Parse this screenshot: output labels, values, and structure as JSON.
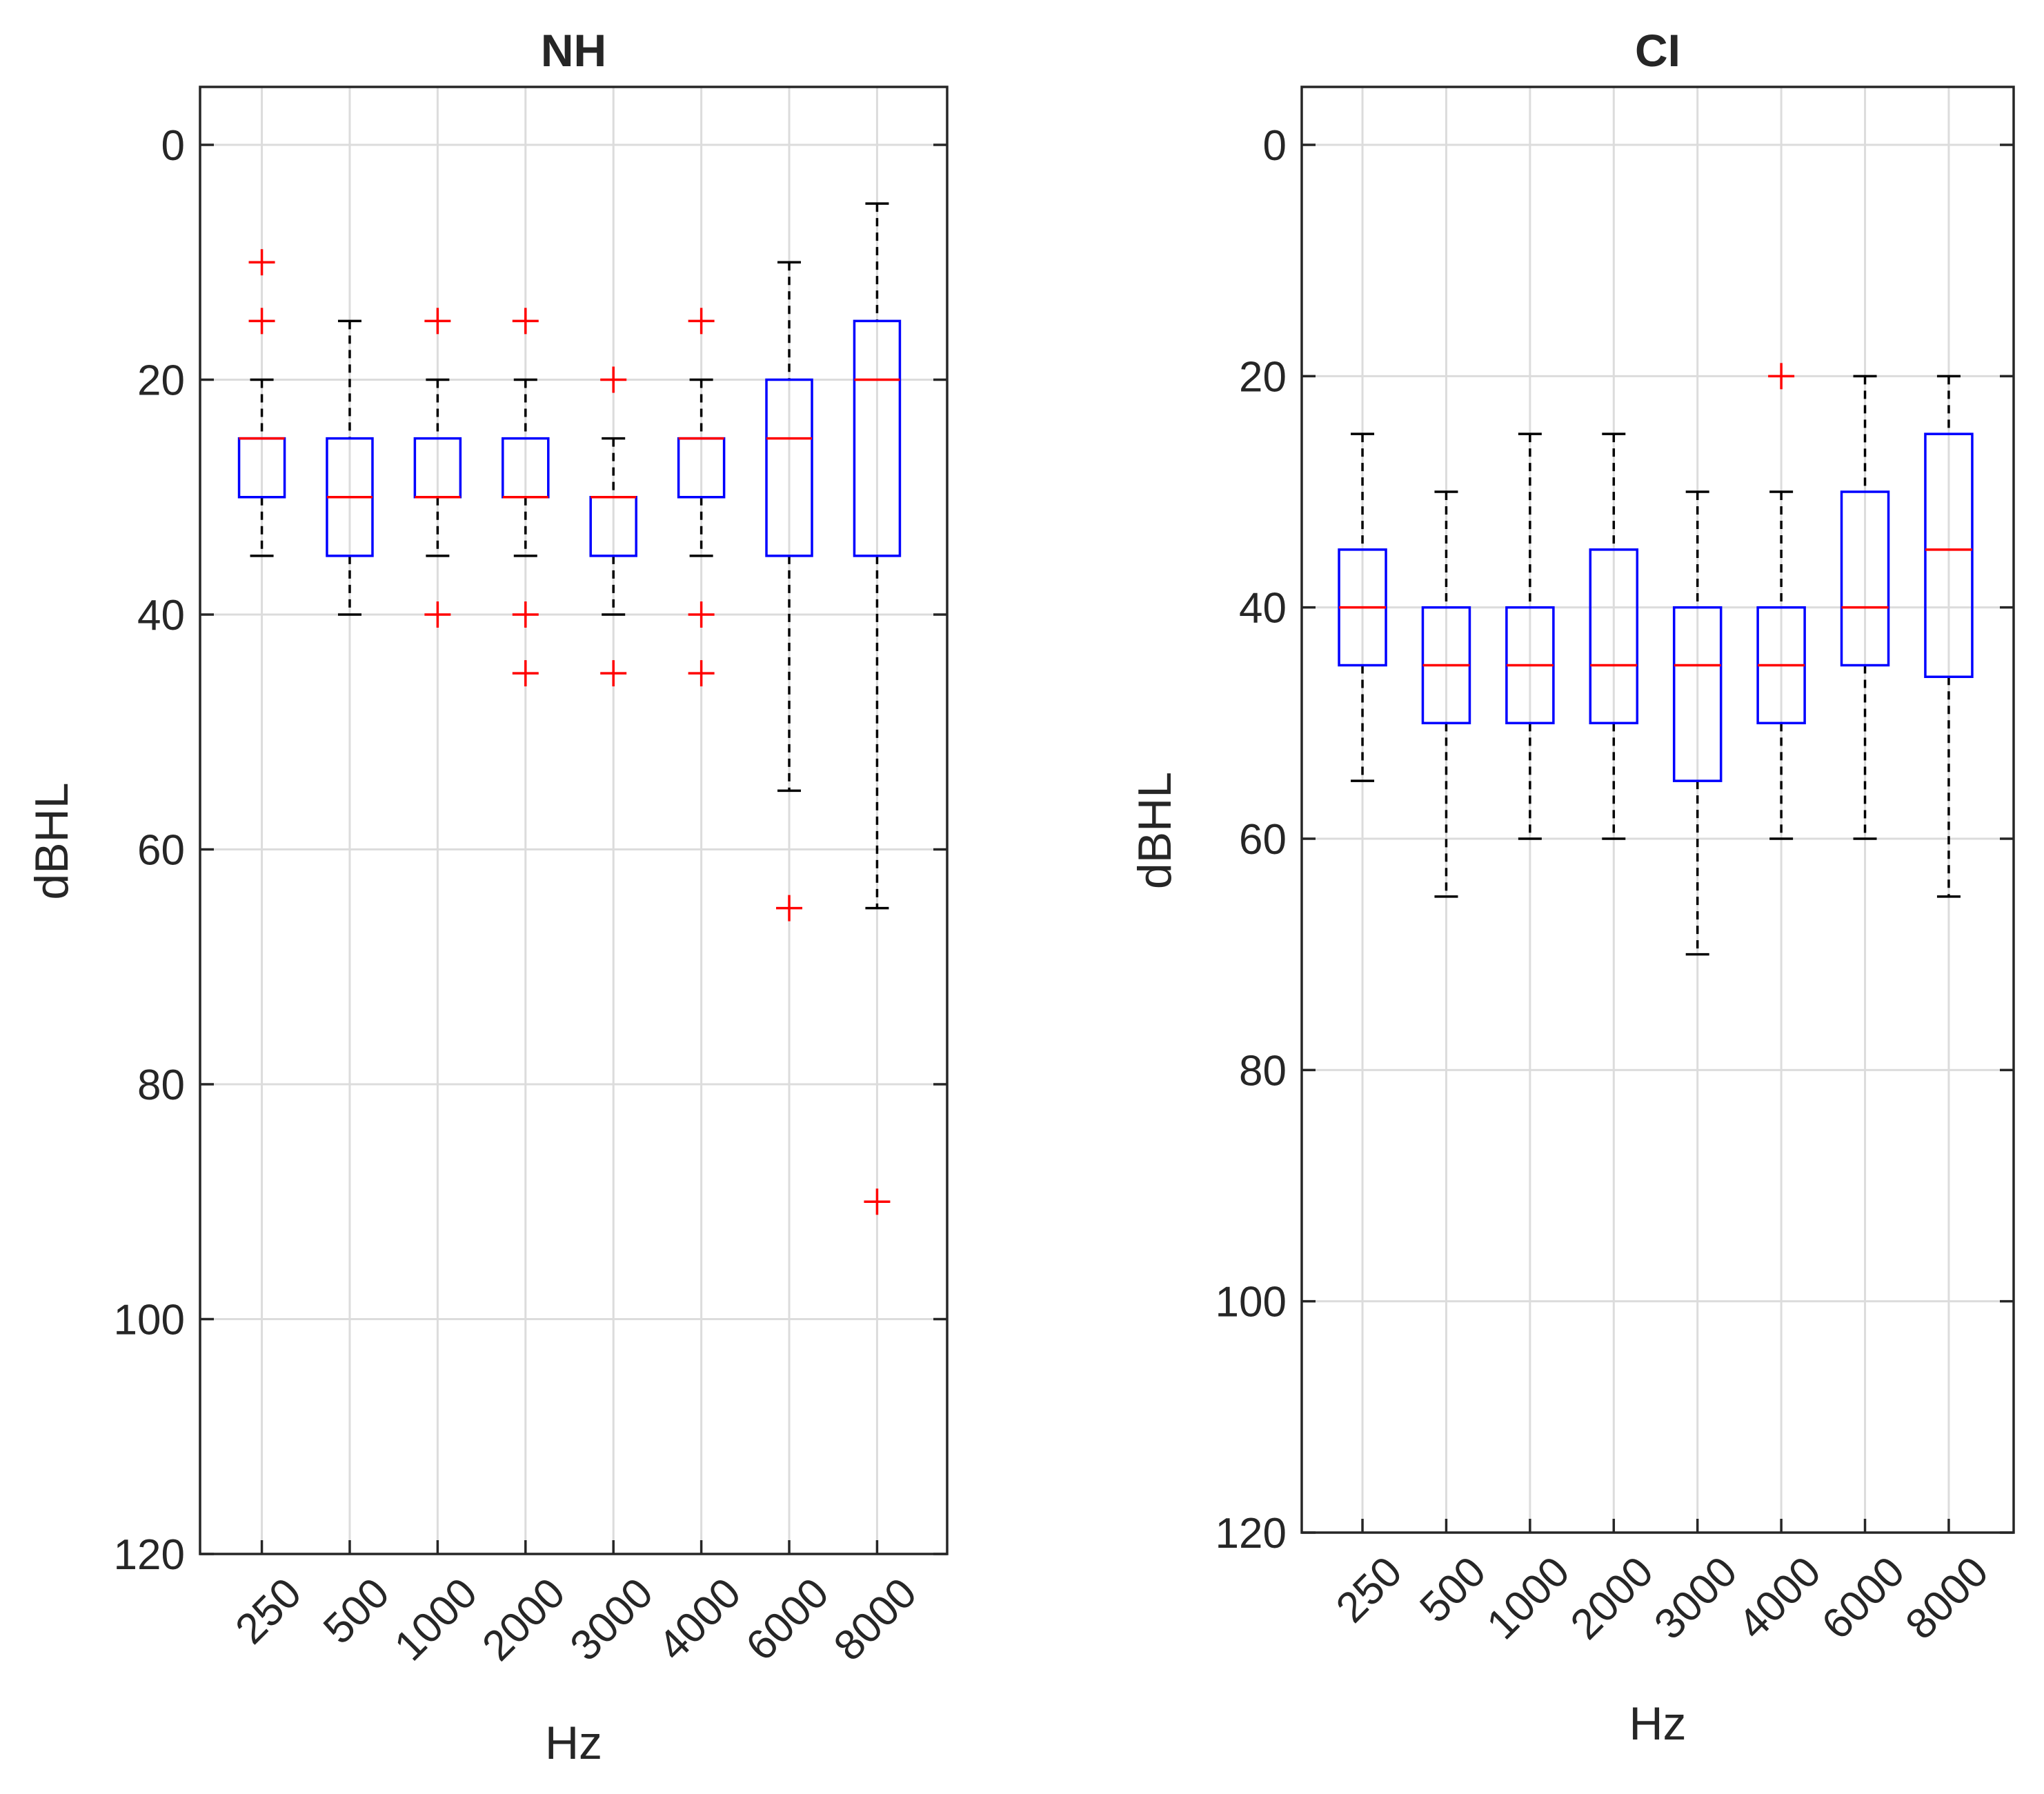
{
  "chart_data": [
    {
      "type": "box",
      "title": "NH",
      "xlabel": "Hz",
      "ylabel": "dBHL",
      "ylim": [
        -5,
        120
      ],
      "y_reversed": true,
      "yticks": [
        "0",
        "20",
        "40",
        "60",
        "80",
        "100",
        "120"
      ],
      "categories": [
        "250",
        "500",
        "1000",
        "2000",
        "3000",
        "4000",
        "6000",
        "8000"
      ],
      "grid": true,
      "boxes": [
        {
          "q1": 25,
          "median": 25,
          "q3": 30,
          "whisker_low": 20,
          "whisker_high": 35,
          "outliers": [
            10,
            15
          ]
        },
        {
          "q1": 25,
          "median": 30,
          "q3": 35,
          "whisker_low": 15,
          "whisker_high": 40,
          "outliers": []
        },
        {
          "q1": 25,
          "median": 30,
          "q3": 30,
          "whisker_low": 20,
          "whisker_high": 35,
          "outliers": [
            15,
            40
          ]
        },
        {
          "q1": 25,
          "median": 30,
          "q3": 30,
          "whisker_low": 20,
          "whisker_high": 35,
          "outliers": [
            15,
            40,
            45
          ]
        },
        {
          "q1": 30,
          "median": 30,
          "q3": 35,
          "whisker_low": 25,
          "whisker_high": 40,
          "outliers": [
            20,
            45
          ]
        },
        {
          "q1": 25,
          "median": 25,
          "q3": 30,
          "whisker_low": 20,
          "whisker_high": 35,
          "outliers": [
            15,
            40,
            45
          ]
        },
        {
          "q1": 20,
          "median": 25,
          "q3": 35,
          "whisker_low": 10,
          "whisker_high": 55,
          "outliers": [
            65
          ]
        },
        {
          "q1": 15,
          "median": 20,
          "q3": 35,
          "whisker_low": 5,
          "whisker_high": 65,
          "outliers": [
            90
          ]
        }
      ]
    },
    {
      "type": "box",
      "title": "CI",
      "xlabel": "Hz",
      "ylabel": "dBHL",
      "ylim": [
        -5,
        120
      ],
      "y_reversed": true,
      "yticks": [
        "0",
        "20",
        "40",
        "60",
        "80",
        "100",
        "120"
      ],
      "categories": [
        "250",
        "500",
        "1000",
        "2000",
        "3000",
        "4000",
        "6000",
        "8000"
      ],
      "grid": true,
      "boxes": [
        {
          "q1": 35,
          "median": 40,
          "q3": 45,
          "whisker_low": 25,
          "whisker_high": 55,
          "outliers": []
        },
        {
          "q1": 40,
          "median": 45,
          "q3": 50,
          "whisker_low": 30,
          "whisker_high": 65,
          "outliers": []
        },
        {
          "q1": 40,
          "median": 45,
          "q3": 50,
          "whisker_low": 25,
          "whisker_high": 60,
          "outliers": []
        },
        {
          "q1": 35,
          "median": 45,
          "q3": 50,
          "whisker_low": 25,
          "whisker_high": 60,
          "outliers": []
        },
        {
          "q1": 40,
          "median": 45,
          "q3": 55,
          "whisker_low": 30,
          "whisker_high": 70,
          "outliers": []
        },
        {
          "q1": 40,
          "median": 45,
          "q3": 50,
          "whisker_low": 30,
          "whisker_high": 60,
          "outliers": [
            20
          ]
        },
        {
          "q1": 30,
          "median": 40,
          "q3": 45,
          "whisker_low": 20,
          "whisker_high": 60,
          "outliers": []
        },
        {
          "q1": 25,
          "median": 35,
          "q3": 46,
          "whisker_low": 20,
          "whisker_high": 65,
          "outliers": []
        }
      ]
    }
  ],
  "colors": {
    "box": "#0000ff",
    "median": "#ff0000",
    "outlier": "#ff0000",
    "whisker": "#000000",
    "grid": "#dcdcdc",
    "axis": "#262626"
  }
}
